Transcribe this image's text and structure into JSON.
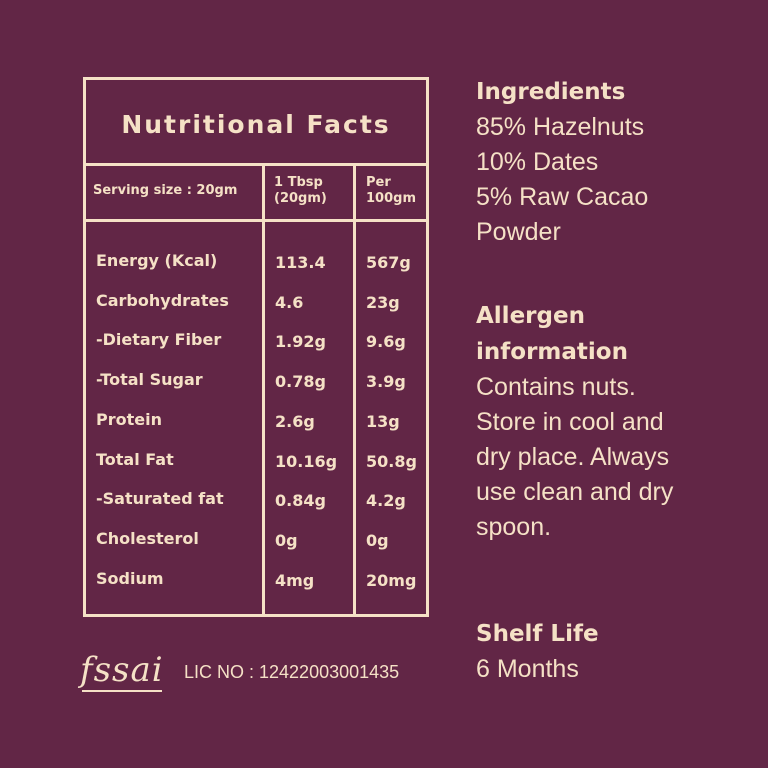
{
  "nutrition": {
    "title": "Nutritional Facts",
    "headers": {
      "serving": "Serving size : 20gm",
      "col1_line1": "1 Tbsp",
      "col1_line2": "(20gm)",
      "col2_line1": "Per",
      "col2_line2": "100gm"
    },
    "rows": [
      {
        "label": "Energy (Kcal)",
        "tbsp": "113.4",
        "per100": "567g"
      },
      {
        "label": "Carbohydrates",
        "tbsp": "4.6",
        "per100": "23g"
      },
      {
        "label": "-Dietary Fiber",
        "tbsp": "1.92g",
        "per100": "9.6g"
      },
      {
        "label": "-Total Sugar",
        "tbsp": "0.78g",
        "per100": "3.9g"
      },
      {
        "label": "Protein",
        "tbsp": "2.6g",
        "per100": "13g"
      },
      {
        "label": "Total Fat",
        "tbsp": "10.16g",
        "per100": "50.8g"
      },
      {
        "label": "-Saturated fat",
        "tbsp": "0.84g",
        "per100": "4.2g"
      },
      {
        "label": "Cholesterol",
        "tbsp": "0g",
        "per100": "0g"
      },
      {
        "label": "Sodium",
        "tbsp": "4mg",
        "per100": "20mg"
      }
    ]
  },
  "ingredients": {
    "heading": "Ingredients",
    "lines": [
      "85% Hazelnuts",
      "10% Dates",
      "5% Raw Cacao",
      "Powder"
    ]
  },
  "allergen": {
    "heading_line1": "Allergen",
    "heading_line2": "information",
    "lines": [
      "Contains nuts.",
      "Store in cool and",
      "dry place. Always",
      "use clean and dry",
      "spoon."
    ]
  },
  "shelf": {
    "heading": "Shelf Life",
    "value": "6 Months"
  },
  "footer": {
    "logo_text": "fssai",
    "license": "LIC NO : 12422003001435"
  },
  "colors": {
    "background": "#622646",
    "foreground": "#f5e1c6"
  }
}
